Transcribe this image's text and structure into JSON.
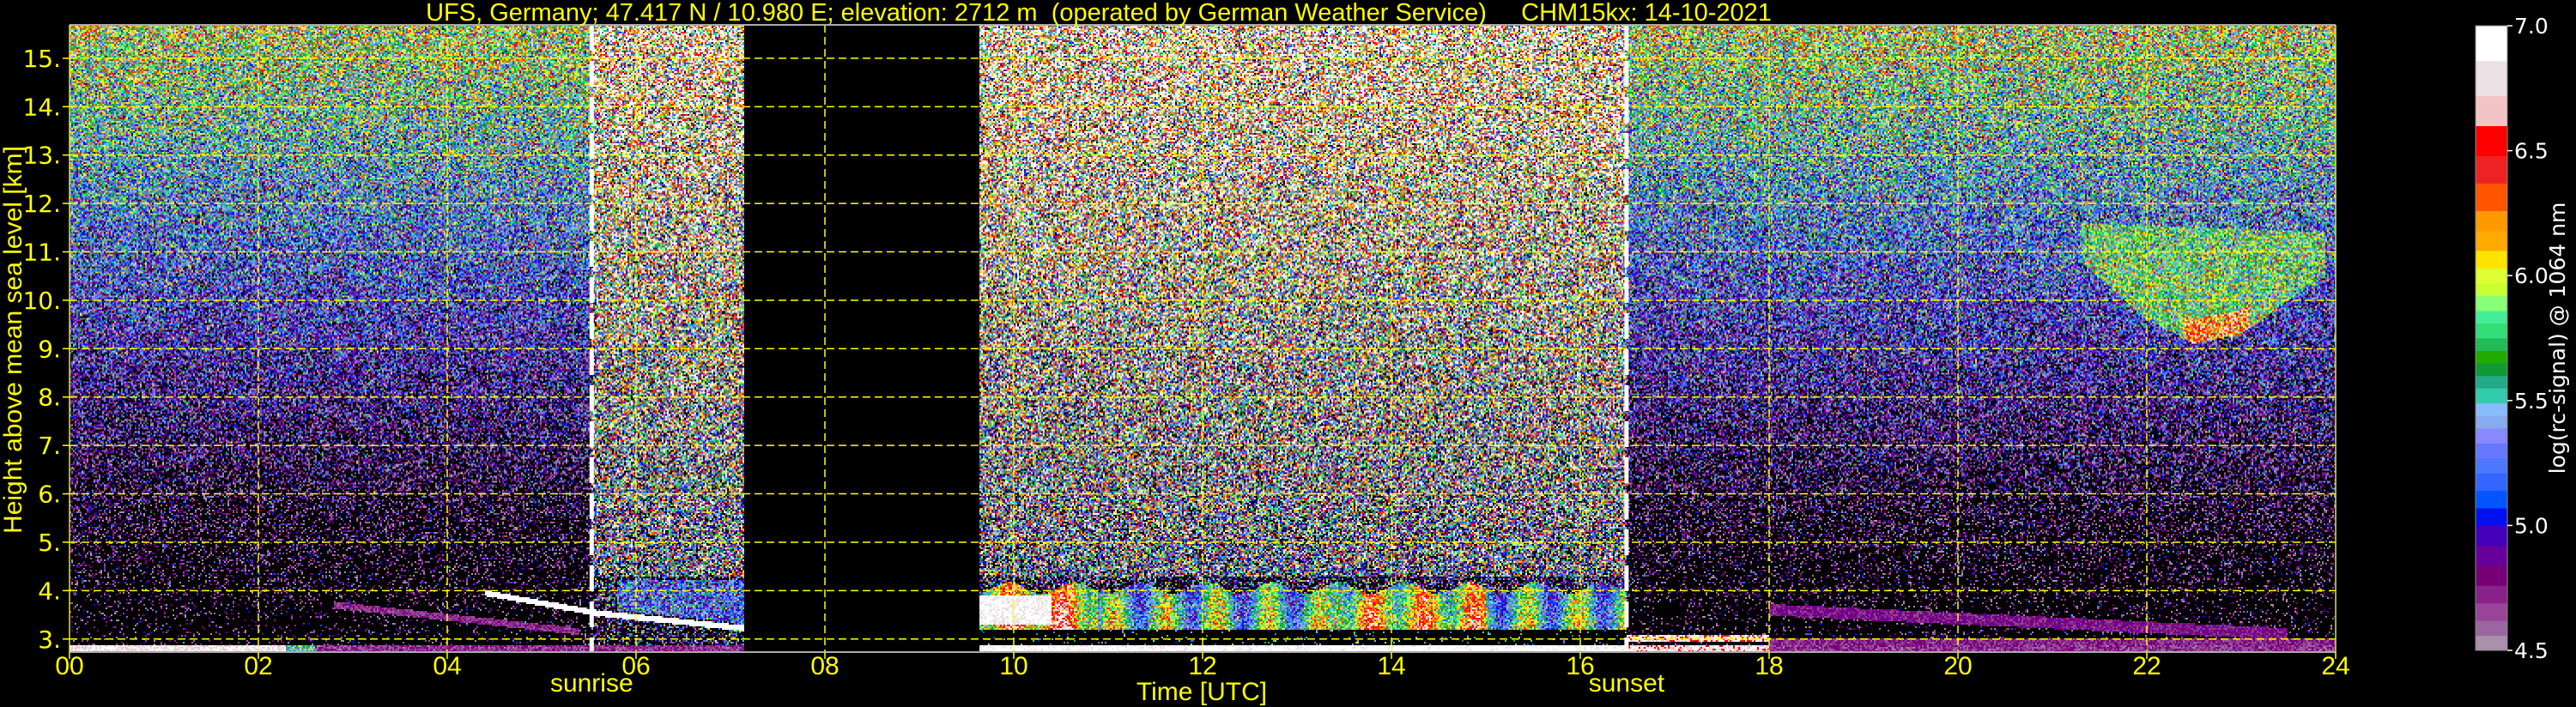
{
  "chart_data": {
    "type": "heatmap",
    "title": "UFS, Germany; 47.417 N / 10.980 E; elevation: 2712 m  (operated by German Weather Service)     CHM15kx: 14-10-2021",
    "xlabel": "Time [UTC]",
    "ylabel": "Height above mean sea level [km]",
    "xlim": [
      0,
      24
    ],
    "ylim": [
      2.73,
      15.69
    ],
    "x_ticks": [
      0,
      2,
      4,
      6,
      8,
      10,
      12,
      14,
      16,
      18,
      20,
      22,
      24
    ],
    "x_tick_labels": [
      "00",
      "02",
      "04",
      "06",
      "08",
      "10",
      "12",
      "14",
      "16",
      "18",
      "20",
      "22",
      "24"
    ],
    "y_ticks": [
      3,
      4,
      5,
      6,
      7,
      8,
      9,
      10,
      11,
      12,
      13,
      14,
      15
    ],
    "y_tick_labels": [
      "3.",
      "4.",
      "5.",
      "6.",
      "7.",
      "8.",
      "9.",
      "10.",
      "11.",
      "12.",
      "13.",
      "14.",
      "15."
    ],
    "grid": true,
    "grid_color": "#ffff00",
    "annotations": [
      {
        "label": "sunrise",
        "x": 5.53
      },
      {
        "label": "sunset",
        "x": 16.49
      }
    ],
    "data_gap": [
      7.15,
      9.64
    ],
    "features": {
      "daytime_boundary_layer": {
        "t": [
          9.64,
          16.49
        ],
        "h_km": [
          3.2,
          4.1
        ],
        "log_signal": [
          5.5,
          6.6
        ]
      },
      "morning_aerosol_layer": {
        "t": [
          4.4,
          7.15
        ],
        "h_km": [
          3.2,
          3.95
        ],
        "log_signal": 7.0
      },
      "evening_residual_layer": {
        "t": [
          18,
          23.5
        ],
        "h_km": [
          3.1,
          3.65
        ],
        "log_signal": 4.75
      },
      "cirrus_cloud": {
        "t": [
          21.3,
          23.9
        ],
        "h_km": [
          9.1,
          11.7
        ],
        "log_signal": [
          5.7,
          6.6
        ]
      }
    },
    "colorbar": {
      "label": "log(rc-signal) @ 1064 nm",
      "range": [
        4.5,
        7.0
      ],
      "ticks": [
        4.5,
        5.0,
        5.5,
        6.0,
        6.5,
        7.0
      ],
      "tick_labels": [
        "4.5",
        "5.0",
        "5.5",
        "6.0",
        "6.5",
        "7.0"
      ],
      "levels": [
        4.5,
        4.56,
        4.62,
        4.69,
        4.76,
        4.84,
        4.92,
        5.0,
        5.07,
        5.14,
        5.21,
        5.27,
        5.33,
        5.39,
        5.44,
        5.49,
        5.55,
        5.6,
        5.65,
        5.7,
        5.75,
        5.81,
        5.86,
        5.92,
        5.97,
        6.03,
        6.1,
        6.18,
        6.26,
        6.37,
        6.48,
        6.6,
        6.72,
        6.86,
        7.0
      ],
      "colors": [
        "#aa90aa",
        "#9966a0",
        "#994499",
        "#882288",
        "#770077",
        "#660099",
        "#4400bb",
        "#0011ee",
        "#0055ff",
        "#3366ff",
        "#4d77ff",
        "#6677ff",
        "#8888ff",
        "#88aaee",
        "#88bbff",
        "#33ccaa",
        "#22aa88",
        "#119933",
        "#22aa00",
        "#22bb55",
        "#33dd77",
        "#44ee99",
        "#88ff77",
        "#c8ff33",
        "#ddff33",
        "#ffe400",
        "#ffaa00",
        "#ff9900",
        "#ff5500",
        "#ee2222",
        "#ff0000",
        "#f2c4c6",
        "#ebe0e3",
        "#ffffff"
      ]
    }
  }
}
